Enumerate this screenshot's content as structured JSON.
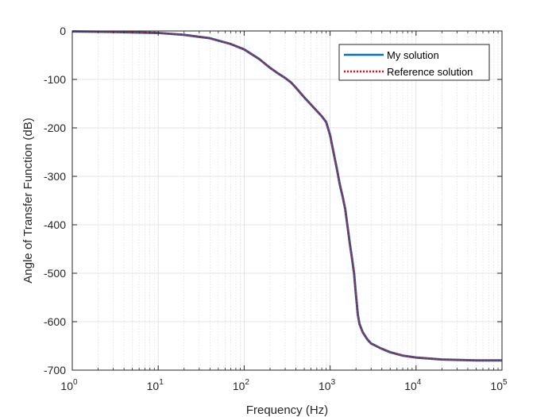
{
  "chart_data": {
    "type": "line",
    "title": "",
    "xlabel": "Frequency (Hz)",
    "ylabel": "Angle of Transfer Function (dB)",
    "xscale": "log",
    "xlim": [
      1,
      100000
    ],
    "ylim": [
      -700,
      0
    ],
    "x_ticks": [
      1,
      10,
      100,
      1000,
      10000,
      100000
    ],
    "x_tick_labels": [
      {
        "base": "10",
        "exp": "0"
      },
      {
        "base": "10",
        "exp": "1"
      },
      {
        "base": "10",
        "exp": "2"
      },
      {
        "base": "10",
        "exp": "3"
      },
      {
        "base": "10",
        "exp": "4"
      },
      {
        "base": "10",
        "exp": "5"
      }
    ],
    "y_ticks": [
      0,
      -100,
      -200,
      -300,
      -400,
      -500,
      -600,
      -700
    ],
    "y_tick_labels": [
      "0",
      "-100",
      "-200",
      "-300",
      "-400",
      "-500",
      "-600",
      "-700"
    ],
    "grid": true,
    "minor_grid_x": true,
    "legend_position": "top-right",
    "series": [
      {
        "name": "My solution",
        "color": "#0072BD",
        "style": "solid",
        "x": [
          1,
          3,
          10,
          20,
          40,
          70,
          100,
          150,
          200,
          250,
          300,
          350,
          400,
          500,
          600,
          700,
          800,
          900,
          1000,
          1100,
          1200,
          1300,
          1400,
          1500,
          1600,
          1700,
          1800,
          1900,
          2000,
          2050,
          2100,
          2200,
          2400,
          2700,
          3000,
          4000,
          5000,
          7000,
          10000,
          20000,
          50000,
          100000
        ],
        "y": [
          -1,
          -2,
          -4,
          -8,
          -15,
          -27,
          -38,
          -58,
          -76,
          -88,
          -97,
          -106,
          -117,
          -137,
          -152,
          -165,
          -176,
          -188,
          -215,
          -252,
          -285,
          -318,
          -342,
          -368,
          -405,
          -440,
          -470,
          -500,
          -545,
          -565,
          -585,
          -605,
          -622,
          -636,
          -645,
          -656,
          -663,
          -670,
          -674,
          -678,
          -680,
          -680
        ]
      },
      {
        "name": "Reference solution",
        "color": "#FF0000",
        "style": "dotted",
        "x": [
          1,
          3,
          10,
          20,
          40,
          70,
          100,
          150,
          200,
          250,
          300,
          350,
          400,
          500,
          600,
          700,
          800,
          900,
          1000,
          1100,
          1200,
          1300,
          1400,
          1500,
          1600,
          1700,
          1800,
          1900,
          2000,
          2050,
          2100,
          2200,
          2400,
          2700,
          3000,
          4000,
          5000,
          7000,
          10000,
          20000,
          50000,
          100000
        ],
        "y": [
          -1,
          -2,
          -4,
          -8,
          -15,
          -27,
          -38,
          -58,
          -76,
          -88,
          -97,
          -106,
          -117,
          -137,
          -152,
          -165,
          -176,
          -188,
          -215,
          -252,
          -285,
          -318,
          -342,
          -368,
          -405,
          -440,
          -470,
          -500,
          -545,
          -565,
          -585,
          -605,
          -622,
          -636,
          -645,
          -656,
          -663,
          -670,
          -674,
          -678,
          -680,
          -680
        ]
      }
    ]
  }
}
